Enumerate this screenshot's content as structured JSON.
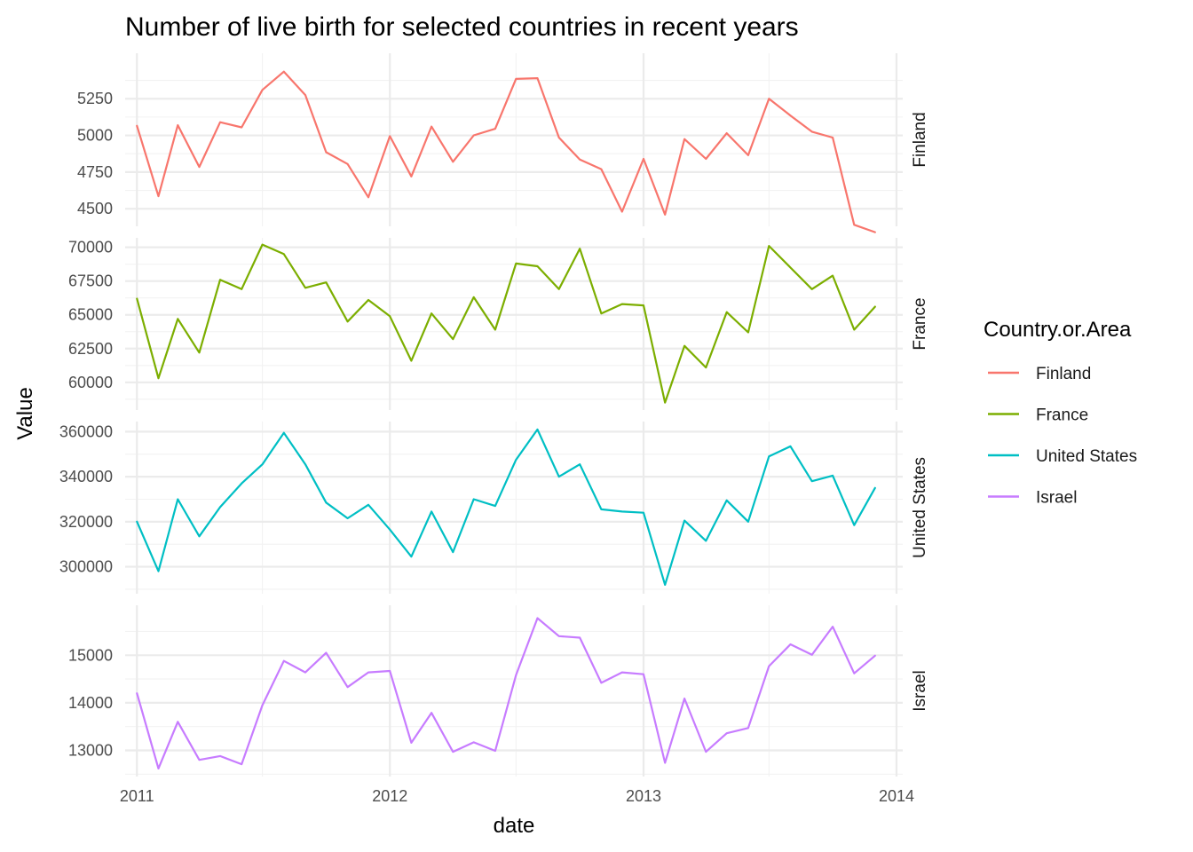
{
  "chart_data": {
    "type": "line",
    "title": "Number of live birth for selected countries in recent years",
    "xlabel": "date",
    "ylabel": "Value",
    "legend_title": "Country.or.Area",
    "legend_position": "right",
    "grid": true,
    "facets": "rows, free y scales",
    "x_ticks": [
      "2011",
      "2012",
      "2013",
      "2014"
    ],
    "xlim": [
      "2010-12-15",
      "2014-01-10"
    ],
    "x": [
      "2011-01",
      "2011-02",
      "2011-03",
      "2011-04",
      "2011-05",
      "2011-06",
      "2011-07",
      "2011-08",
      "2011-09",
      "2011-10",
      "2011-11",
      "2011-12",
      "2012-01",
      "2012-02",
      "2012-03",
      "2012-04",
      "2012-05",
      "2012-06",
      "2012-07",
      "2012-08",
      "2012-09",
      "2012-10",
      "2012-11",
      "2012-12",
      "2013-01",
      "2013-02",
      "2013-03",
      "2013-04",
      "2013-05",
      "2013-06",
      "2013-07",
      "2013-08",
      "2013-09",
      "2013-10",
      "2013-11",
      "2013-12"
    ],
    "series": [
      {
        "name": "Finland",
        "color": "#F8766D",
        "ylim": [
          4380,
          5560
        ],
        "y_ticks": [
          "4500",
          "4750",
          "5000",
          "5250"
        ],
        "values": [
          5065,
          4585,
          5070,
          4785,
          5090,
          5055,
          5310,
          5435,
          5275,
          4885,
          4805,
          4578,
          4995,
          4720,
          5060,
          4820,
          5000,
          5045,
          5385,
          5390,
          4985,
          4835,
          4770,
          4480,
          4840,
          4460,
          4975,
          4840,
          5015,
          4865,
          5250,
          5135,
          5025,
          4985,
          4390,
          4340
        ]
      },
      {
        "name": "France",
        "color": "#7CAE00",
        "ylim": [
          57950,
          70700
        ],
        "y_ticks": [
          "60000",
          "62500",
          "65000",
          "67500",
          "70000"
        ],
        "values": [
          66200,
          60300,
          64700,
          62200,
          67600,
          66900,
          70200,
          69500,
          67000,
          67400,
          64500,
          66100,
          64900,
          61600,
          65100,
          63200,
          66300,
          63900,
          68800,
          68600,
          66900,
          69900,
          65100,
          65800,
          65700,
          58500,
          62700,
          61100,
          65200,
          63700,
          70100,
          68500,
          66900,
          67900,
          63900,
          65600
        ]
      },
      {
        "name": "United States",
        "color": "#00BFC4",
        "ylim": [
          288000,
          364500
        ],
        "y_ticks": [
          "300000",
          "320000",
          "340000",
          "360000"
        ],
        "values": [
          320000,
          298000,
          330000,
          313500,
          326500,
          337000,
          345500,
          359500,
          345500,
          328500,
          321500,
          327500,
          316500,
          304500,
          324500,
          306500,
          330000,
          327000,
          347500,
          361000,
          340000,
          345500,
          325500,
          324500,
          324000,
          292000,
          320500,
          311500,
          329500,
          320000,
          349000,
          353500,
          338000,
          340500,
          318500,
          335000
        ]
      },
      {
        "name": "Israel",
        "color": "#C77CFF",
        "ylim": [
          12450,
          16050
        ],
        "y_ticks": [
          "13000",
          "14000",
          "15000"
        ],
        "values": [
          14200,
          12620,
          13600,
          12800,
          12880,
          12710,
          13950,
          14880,
          14640,
          15050,
          14330,
          14640,
          14670,
          13160,
          13790,
          12970,
          13170,
          12990,
          14580,
          15780,
          15400,
          15370,
          14420,
          14640,
          14600,
          12740,
          14090,
          12970,
          13360,
          13470,
          14770,
          15230,
          15010,
          15600,
          14620,
          14990
        ]
      }
    ]
  }
}
